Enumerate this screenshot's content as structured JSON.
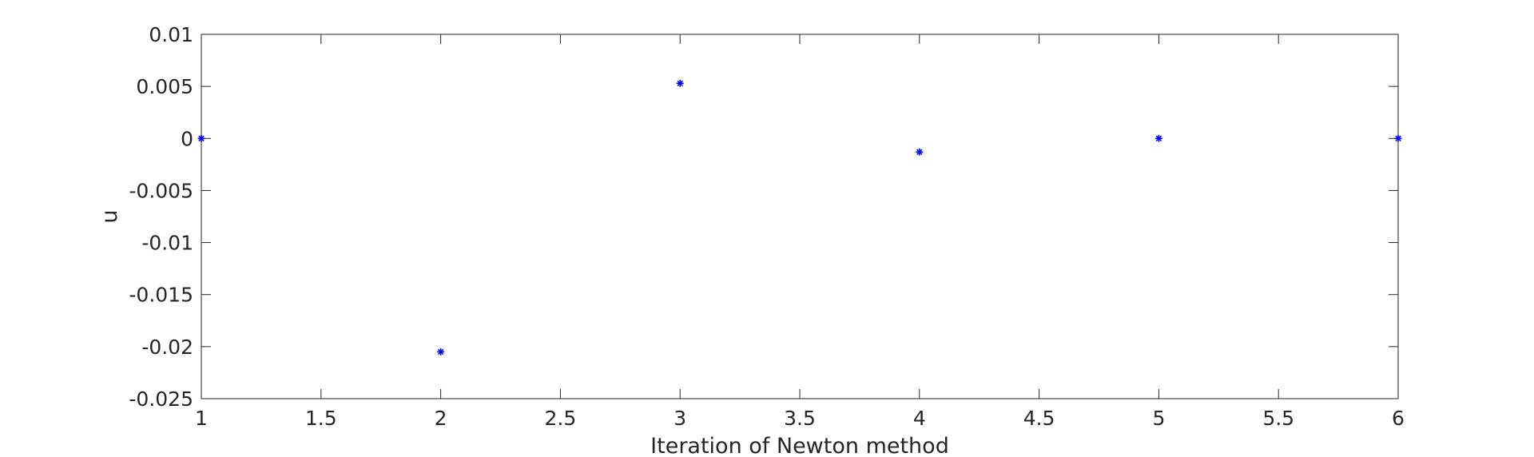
{
  "chart_data": {
    "type": "scatter",
    "title": "",
    "xlabel": "Iteration of Newton method",
    "ylabel": "u",
    "xlim": [
      1,
      6
    ],
    "ylim": [
      -0.025,
      0.01
    ],
    "xticks": [
      1,
      1.5,
      2,
      2.5,
      3,
      3.5,
      4,
      4.5,
      5,
      5.5,
      6
    ],
    "xtick_labels": [
      "1",
      "1.5",
      "2",
      "2.5",
      "3",
      "3.5",
      "4",
      "4.5",
      "5",
      "5.5",
      "6"
    ],
    "yticks": [
      0.01,
      0.005,
      0,
      -0.005,
      -0.01,
      -0.015,
      -0.02,
      -0.025
    ],
    "ytick_labels": [
      "0.01",
      "0.005",
      "0",
      "-0.005",
      "-0.01",
      "-0.015",
      "-0.02",
      "-0.025"
    ],
    "grid": false,
    "marker": "asterisk",
    "marker_color": "#0000ff",
    "series": [
      {
        "x": [
          1,
          2,
          3,
          4,
          5,
          6
        ],
        "y": [
          0,
          -0.0205,
          0.0053,
          -0.0013,
          0,
          0
        ]
      }
    ]
  }
}
